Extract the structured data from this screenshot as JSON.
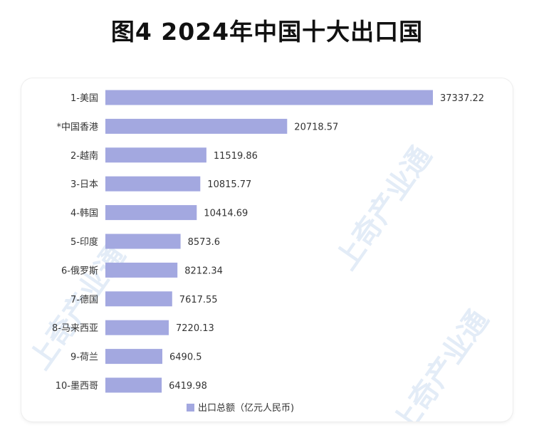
{
  "title": "图4 2024年中国十大出口国",
  "chart_data": {
    "type": "bar",
    "orientation": "horizontal",
    "categories": [
      "1-美国",
      "*中国香港",
      "2-越南",
      "3-日本",
      "4-韩国",
      "5-印度",
      "6-俄罗斯",
      "7-德国",
      "8-马来西亚",
      "9-荷兰",
      "10-墨西哥"
    ],
    "series": [
      {
        "name": "出口总额（亿元人民币)",
        "values": [
          37337.22,
          20718.57,
          11519.86,
          10815.77,
          10414.69,
          8573.6,
          8212.34,
          7617.55,
          7220.13,
          6490.5,
          6419.98
        ]
      }
    ],
    "value_labels": [
      "37337.22",
      "20718.57",
      "11519.86",
      "10815.77",
      "10414.69",
      "8573.6",
      "8212.34",
      "7617.55",
      "7220.13",
      "6490.5",
      "6419.98"
    ],
    "xlim": [
      0,
      37337.22
    ],
    "grid": false,
    "legend": "bottom",
    "bar_color": "#a3a8e0"
  },
  "watermark": "上奇产业通"
}
